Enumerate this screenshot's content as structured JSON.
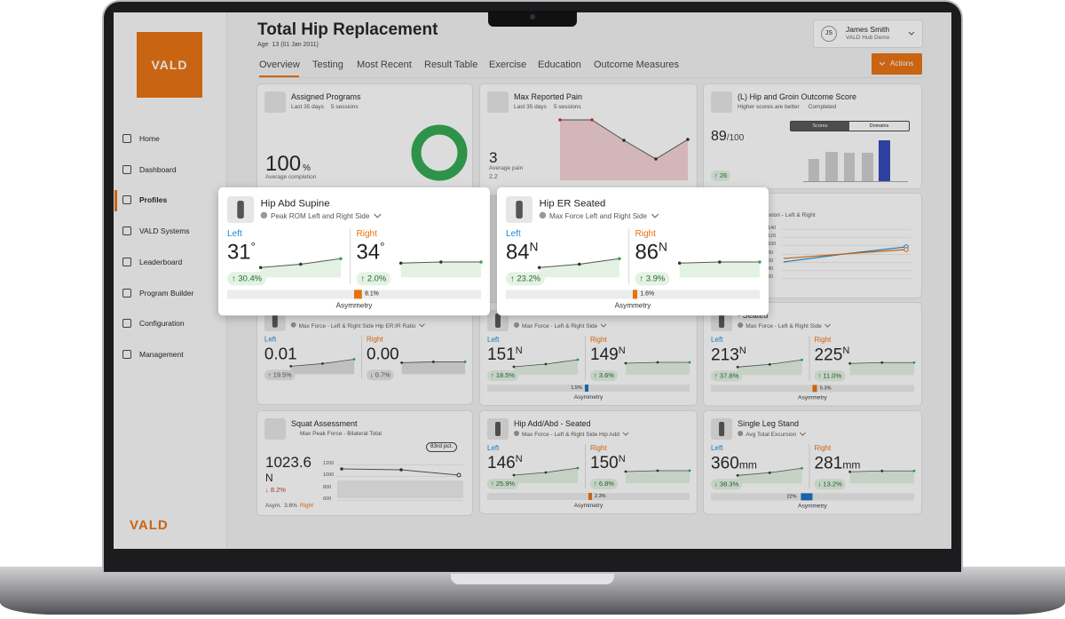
{
  "logo": "VALD",
  "footer_logo": "VALD",
  "nav": [
    "Home",
    "Dashboard",
    "Profiles",
    "VALD Systems",
    "Leaderboard",
    "Program Builder",
    "Configuration",
    "Management"
  ],
  "header": {
    "title": "Total Hip Replacement",
    "age_label": "Age",
    "age": "13 (01 Jan 2011)",
    "tabs": [
      "Overview",
      "Testing",
      "Most Recent",
      "Result Table",
      "Exercise",
      "Education",
      "Outcome Measures"
    ],
    "user_initials": "JS",
    "user_name": "James Smith",
    "user_org": "VALD Hub Demo",
    "actions": "Actions"
  },
  "assigned_programs": {
    "title": "Assigned Programs",
    "period": "Last 35 days",
    "sessions": "5 sessions",
    "value": "100",
    "unit": "%",
    "caption": "Average completion"
  },
  "pain": {
    "title": "Max Reported Pain",
    "period": "Last 35 days",
    "sessions": "5 sessions",
    "value": "3",
    "caption": "Average pain",
    "average": "2.2"
  },
  "outcome": {
    "title": "(L) Hip and Groin Outcome Score",
    "note": "Higher scores are better",
    "status": "Completed",
    "score": "89",
    "max": "/100",
    "toggle": [
      "Scores",
      "Domains"
    ],
    "change": "↑ 26"
  },
  "knee": {
    "subtitle": "Knee Flexion - Left & Right",
    "yticks": [
      140,
      120,
      100,
      80,
      60,
      40,
      20
    ]
  },
  "metrics": [
    {
      "subtitle": "Max Force - Left & Right Side Hip ER:IR Ratio",
      "left_label": "Left",
      "left_value": "0.01",
      "right_label": "Right",
      "right_value": "0.00",
      "left_change": "↑ 19.5%",
      "right_change": "↓ 0.7%"
    },
    {
      "subtitle": "Max Force - Left & Right Side",
      "left_label": "Left",
      "left_value": "151",
      "left_unit": "N",
      "right_label": "Right",
      "right_value": "149",
      "right_unit": "N",
      "left_change": "↑ 18.5%",
      "right_change": "↑ 3.6%",
      "asymmetry": "1.5%",
      "asymmetry_label": "Asymmetry"
    },
    {
      "title": "- Seated",
      "subtitle": "Max Force - Left & Right Side",
      "left_label": "Left",
      "left_value": "213",
      "left_unit": "N",
      "right_label": "Right",
      "right_value": "225",
      "right_unit": "N",
      "left_change": "↑ 37.8%",
      "right_change": "↑ 11.0%",
      "asymmetry": "5.3%",
      "asymmetry_label": "Asymmetry"
    },
    {
      "title": "Hip Add/Abd - Seated",
      "subtitle": "Max Force - Left & Right Side Hip Add",
      "left_label": "Left",
      "left_value": "146",
      "left_unit": "N",
      "right_label": "Right",
      "right_value": "150",
      "right_unit": "N",
      "left_change": "↑ 25.9%",
      "right_change": "↑ 6.8%",
      "asymmetry": "2.3%",
      "asymmetry_label": "Asymmetry"
    },
    {
      "title": "Single Leg Stand",
      "subtitle": "Avg Total Excursion",
      "left_label": "Left",
      "left_value": "360",
      "left_unit": "mm",
      "right_label": "Right",
      "right_value": "281",
      "right_unit": "mm",
      "left_change": "↓ 38.3%",
      "right_change": "↓ 13.2%",
      "asymmetry": "22%",
      "asymmetry_label": "Asymmetry"
    }
  ],
  "squat": {
    "title": "Squat Assessment",
    "subtitle": "Max Peak Force - Bilateral Total",
    "percentile": "83rd pct.",
    "value": "1023.6",
    "unit": "N",
    "change": "↓ 8.2%",
    "asym_label": "Asym.",
    "asym_value": "3.6%",
    "asym_side": "Right",
    "yticks": [
      1200,
      1000,
      800,
      600
    ]
  },
  "popups": [
    {
      "title": "Hip Abd Supine",
      "subtitle": "Peak ROM Left and Right Side",
      "left_label": "Left",
      "left_value": "31",
      "left_unit": "°",
      "right_label": "Right",
      "right_value": "34",
      "right_unit": "°",
      "left_change": "↑ 30.4%",
      "right_change": "↑ 2.0%",
      "asymmetry": "8.1%",
      "asymmetry_label": "Asymmetry"
    },
    {
      "title": "Hip ER Seated",
      "subtitle": "Max Force Left and Right Side",
      "left_label": "Left",
      "left_value": "84",
      "left_unit": "N",
      "right_label": "Right",
      "right_value": "86",
      "right_unit": "N",
      "left_change": "↑ 23.2%",
      "right_change": "↑ 3.9%",
      "asymmetry": "1.6%",
      "asymmetry_label": "Asymmetry"
    }
  ]
}
